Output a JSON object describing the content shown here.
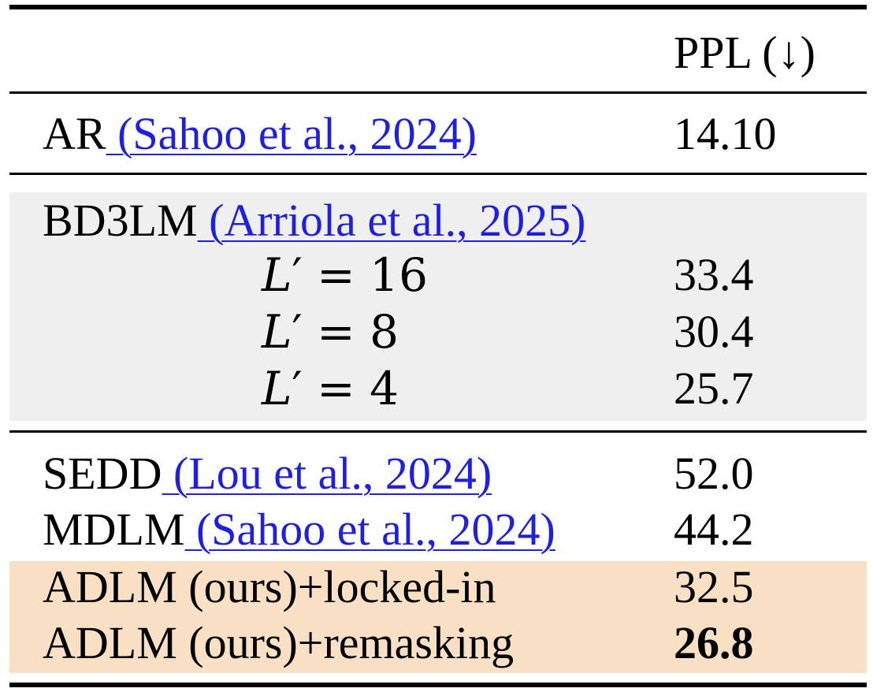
{
  "table": {
    "header": {
      "metric": "PPL (↓)"
    },
    "rows": {
      "ar": {
        "model": "AR",
        "citation": " (Sahoo et al., 2024)",
        "ppl": "14.10"
      },
      "bd3lm": {
        "model": "BD3LM",
        "citation": " (Arriola et al., 2025)",
        "variants": [
          {
            "var": "L",
            "prime": "′",
            "eq": " = ",
            "value": "16",
            "ppl": "33.4"
          },
          {
            "var": "L",
            "prime": "′",
            "eq": " = ",
            "value": "8",
            "ppl": "30.4"
          },
          {
            "var": "L",
            "prime": "′",
            "eq": " = ",
            "value": "4",
            "ppl": "25.7"
          }
        ]
      },
      "sedd": {
        "model": "SEDD",
        "citation": " (Lou et al., 2024)",
        "ppl": "52.0"
      },
      "mdlm": {
        "model": "MDLM",
        "citation": " (Sahoo et al., 2024)",
        "ppl": "44.2"
      },
      "adlm_locked": {
        "model": "ADLM (ours)+locked-in",
        "ppl": "32.5"
      },
      "adlm_remask": {
        "model": "ADLM (ours)+remasking",
        "ppl": "26.8",
        "best": true
      }
    },
    "colors": {
      "citation": "#1f1fe0",
      "bd3lm_shade": "#efefef",
      "ours_shade": "#f9dfc4"
    }
  }
}
